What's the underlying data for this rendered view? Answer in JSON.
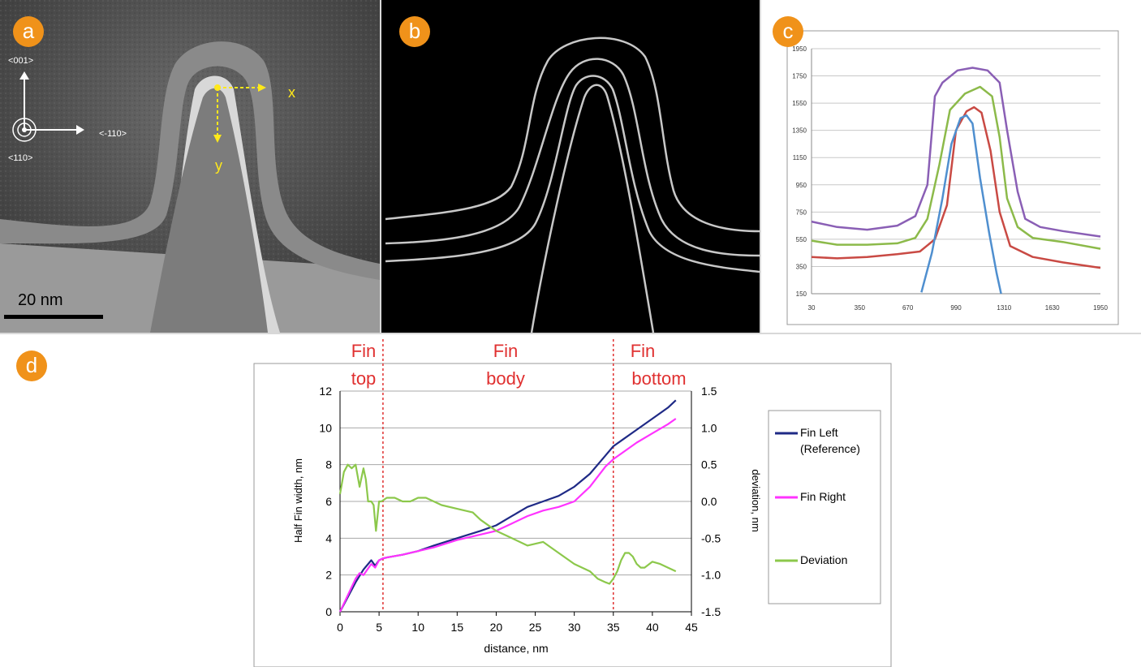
{
  "panels": {
    "a": {
      "badge": "a",
      "dir_001": "<001>",
      "dir_110": "<110>",
      "dir_m110": "<-110>",
      "axis_x": "x",
      "axis_y": "y",
      "scale_bar": "20 nm"
    },
    "b": {
      "badge": "b"
    },
    "c": {
      "badge": "c"
    },
    "d": {
      "badge": "d"
    }
  },
  "colors": {
    "badge": "#f0921a",
    "fin_left": "#1f2a86",
    "fin_right": "#ff33ff",
    "deviation": "#8cc84b",
    "region_line": "#e03030",
    "c_purple": "#8a5fb5",
    "c_green": "#8cba4a",
    "c_red": "#c94a44",
    "c_blue": "#4f8fcf"
  },
  "chart_data": [
    {
      "type": "line",
      "panel": "c",
      "title": "",
      "xlabel": "",
      "ylabel": "",
      "xlim": [
        30,
        1950
      ],
      "ylim": [
        150,
        1950
      ],
      "x_ticks": [
        30,
        350,
        670,
        990,
        1310,
        1630,
        1950
      ],
      "y_ticks": [
        150,
        350,
        550,
        750,
        950,
        1150,
        1350,
        1550,
        1750,
        1950
      ],
      "x_tick_labels": [
        "30",
        "350",
        "670",
        "990",
        "1310",
        "1630",
        "1950"
      ],
      "y_tick_labels": [
        "150",
        "350",
        "550",
        "750",
        "950",
        "1150",
        "1350",
        "1550",
        "1750",
        "1950"
      ],
      "grid": true,
      "series": [
        {
          "color": "purple",
          "x": [
            30,
            200,
            400,
            600,
            720,
            800,
            850,
            900,
            1000,
            1100,
            1200,
            1280,
            1330,
            1400,
            1450,
            1550,
            1700,
            1950
          ],
          "y": [
            680,
            640,
            620,
            650,
            720,
            950,
            1600,
            1700,
            1790,
            1810,
            1790,
            1700,
            1350,
            900,
            700,
            640,
            610,
            570
          ]
        },
        {
          "color": "green",
          "x": [
            30,
            200,
            400,
            600,
            720,
            800,
            880,
            950,
            1050,
            1150,
            1230,
            1280,
            1330,
            1400,
            1500,
            1700,
            1950
          ],
          "y": [
            540,
            510,
            510,
            520,
            560,
            700,
            1100,
            1500,
            1620,
            1670,
            1600,
            1300,
            850,
            640,
            560,
            530,
            480
          ]
        },
        {
          "color": "red",
          "x": [
            30,
            200,
            400,
            600,
            750,
            850,
            930,
            990,
            1060,
            1110,
            1160,
            1220,
            1280,
            1350,
            1500,
            1700,
            1950
          ],
          "y": [
            420,
            410,
            420,
            440,
            460,
            550,
            800,
            1350,
            1490,
            1520,
            1480,
            1200,
            750,
            500,
            420,
            380,
            340
          ]
        },
        {
          "color": "blue",
          "x": [
            760,
            830,
            900,
            960,
            1020,
            1060,
            1100,
            1150,
            1210,
            1260,
            1290
          ],
          "y": [
            160,
            450,
            850,
            1250,
            1440,
            1460,
            1400,
            1000,
            600,
            300,
            150
          ]
        }
      ]
    },
    {
      "type": "line",
      "panel": "d",
      "title": "",
      "xlabel": "distance, nm",
      "ylabel": "Half Fin width, nm",
      "y2label": "deviation, nm",
      "xlim": [
        0,
        45
      ],
      "ylim": [
        0,
        12
      ],
      "y2lim": [
        -1.5,
        1.5
      ],
      "x_ticks": [
        0,
        5,
        10,
        15,
        20,
        25,
        30,
        35,
        40,
        45
      ],
      "y_ticks": [
        0,
        2,
        4,
        6,
        8,
        10,
        12
      ],
      "y2_ticks": [
        -1.5,
        -1.0,
        -0.5,
        0.0,
        0.5,
        1.0,
        1.5
      ],
      "x_tick_labels": [
        "0",
        "5",
        "10",
        "15",
        "20",
        "25",
        "30",
        "35",
        "40",
        "45"
      ],
      "y_tick_labels": [
        "0",
        "2",
        "4",
        "6",
        "8",
        "10",
        "12"
      ],
      "y2_tick_labels": [
        "-1.5",
        "-1.0",
        "-0.5",
        "0.0",
        "0.5",
        "1.0",
        "1.5"
      ],
      "grid": true,
      "legend": "right",
      "regions": [
        {
          "label_1": "Fin",
          "label_2": "top",
          "x_end": 5.5
        },
        {
          "label_1": "Fin",
          "label_2": "body",
          "x_end": 35
        },
        {
          "label_1": "Fin",
          "label_2": "bottom"
        }
      ],
      "series": [
        {
          "name": "Fin Left\n(Reference)",
          "legend_line1": "Fin Left",
          "legend_line2": "(Reference)",
          "axis": "left",
          "x": [
            0,
            1,
            2,
            3,
            4,
            4.5,
            5,
            5.5,
            6,
            8,
            10,
            12,
            15,
            18,
            20,
            22,
            24,
            26,
            28,
            30,
            32,
            34,
            35,
            36,
            38,
            40,
            42,
            43
          ],
          "y": [
            0,
            0.8,
            1.6,
            2.3,
            2.8,
            2.5,
            2.8,
            2.9,
            2.95,
            3.1,
            3.3,
            3.6,
            4.0,
            4.4,
            4.7,
            5.2,
            5.7,
            6.0,
            6.3,
            6.8,
            7.5,
            8.5,
            9.0,
            9.3,
            9.9,
            10.5,
            11.1,
            11.5
          ]
        },
        {
          "name": "Fin Right",
          "legend_line1": "Fin Right",
          "axis": "left",
          "x": [
            0,
            1,
            2,
            2.5,
            3,
            4,
            4.5,
            5,
            5.5,
            6,
            8,
            10,
            12,
            15,
            18,
            20,
            22,
            24,
            26,
            28,
            30,
            32,
            34,
            35,
            36,
            38,
            40,
            42,
            43
          ],
          "y": [
            0,
            0.9,
            1.8,
            2.1,
            2.0,
            2.6,
            2.4,
            2.8,
            2.9,
            2.95,
            3.1,
            3.3,
            3.5,
            3.9,
            4.2,
            4.4,
            4.8,
            5.2,
            5.5,
            5.7,
            6.0,
            6.8,
            7.9,
            8.3,
            8.6,
            9.2,
            9.7,
            10.2,
            10.5
          ]
        },
        {
          "name": "Deviation",
          "legend_line1": "Deviation",
          "axis": "right",
          "x": [
            0,
            0.5,
            1,
            1.5,
            2,
            2.5,
            3,
            3.3,
            3.6,
            4,
            4.3,
            4.6,
            5,
            5.3,
            6,
            7,
            8,
            9,
            10,
            11,
            12,
            13,
            15,
            17,
            18,
            20,
            22,
            24,
            26,
            28,
            30,
            32,
            33,
            34,
            34.5,
            35,
            35.5,
            36,
            36.5,
            37,
            37.5,
            38,
            38.5,
            39,
            40,
            41,
            42,
            43
          ],
          "y": [
            0.1,
            0.4,
            0.5,
            0.45,
            0.5,
            0.2,
            0.45,
            0.3,
            0.0,
            0.0,
            -0.05,
            -0.4,
            0.0,
            0.0,
            0.05,
            0.05,
            0.0,
            0.0,
            0.05,
            0.05,
            0.0,
            -0.05,
            -0.1,
            -0.15,
            -0.25,
            -0.4,
            -0.5,
            -0.6,
            -0.55,
            -0.7,
            -0.85,
            -0.95,
            -1.05,
            -1.1,
            -1.12,
            -1.05,
            -0.95,
            -0.8,
            -0.7,
            -0.7,
            -0.75,
            -0.85,
            -0.9,
            -0.9,
            -0.82,
            -0.85,
            -0.9,
            -0.95
          ]
        }
      ]
    }
  ]
}
